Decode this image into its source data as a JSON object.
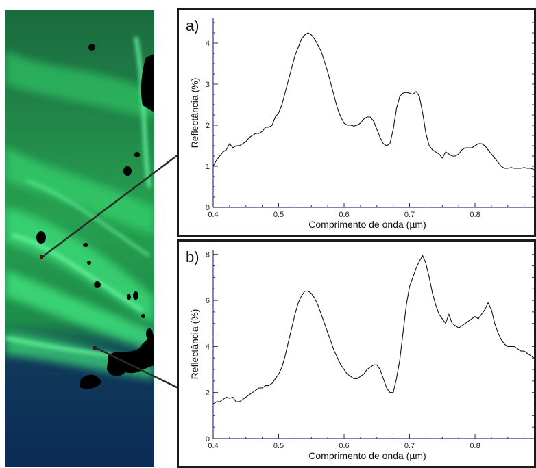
{
  "satellite_image": {
    "description_icon": "satellite-image"
  },
  "chart_data": [
    {
      "type": "line",
      "panel_label": "a)",
      "title": "",
      "xlabel": "Comprimento de onda (µm)",
      "ylabel": "Reflectância (%)",
      "xlim": [
        0.4,
        0.89
      ],
      "ylim": [
        0,
        4.6
      ],
      "xticks": [
        0.4,
        0.5,
        0.6,
        0.7,
        0.8
      ],
      "xtick_labels": [
        "0.4",
        "0.5",
        "0.6",
        "0.7",
        "0.8"
      ],
      "yticks": [
        0,
        1,
        2,
        3,
        4
      ],
      "ytick_labels": [
        "0",
        "1",
        "2",
        "3",
        "4"
      ],
      "grid": false,
      "series": [
        {
          "x": [
            0.4,
            0.405,
            0.41,
            0.415,
            0.42,
            0.425,
            0.43,
            0.435,
            0.44,
            0.445,
            0.45,
            0.455,
            0.46,
            0.465,
            0.47,
            0.475,
            0.48,
            0.485,
            0.49,
            0.495,
            0.5,
            0.505,
            0.51,
            0.515,
            0.52,
            0.525,
            0.53,
            0.535,
            0.54,
            0.545,
            0.55,
            0.555,
            0.56,
            0.565,
            0.57,
            0.575,
            0.58,
            0.585,
            0.59,
            0.595,
            0.6,
            0.605,
            0.61,
            0.615,
            0.62,
            0.625,
            0.63,
            0.635,
            0.64,
            0.645,
            0.65,
            0.655,
            0.66,
            0.665,
            0.67,
            0.675,
            0.68,
            0.685,
            0.69,
            0.695,
            0.7,
            0.705,
            0.71,
            0.715,
            0.72,
            0.725,
            0.73,
            0.735,
            0.74,
            0.745,
            0.75,
            0.755,
            0.76,
            0.765,
            0.77,
            0.775,
            0.78,
            0.785,
            0.79,
            0.795,
            0.8,
            0.805,
            0.81,
            0.815,
            0.82,
            0.825,
            0.83,
            0.835,
            0.84,
            0.845,
            0.85,
            0.855,
            0.86,
            0.865,
            0.87,
            0.875,
            0.88,
            0.885,
            0.89
          ],
          "y": [
            1.0,
            1.15,
            1.25,
            1.35,
            1.4,
            1.55,
            1.45,
            1.5,
            1.5,
            1.55,
            1.6,
            1.7,
            1.75,
            1.8,
            1.8,
            1.85,
            1.95,
            1.95,
            2.0,
            2.2,
            2.3,
            2.5,
            2.8,
            3.1,
            3.4,
            3.7,
            3.9,
            4.1,
            4.2,
            4.25,
            4.2,
            4.1,
            3.95,
            3.8,
            3.55,
            3.3,
            3.0,
            2.7,
            2.4,
            2.2,
            2.05,
            2.0,
            2.0,
            1.98,
            2.0,
            2.05,
            2.15,
            2.2,
            2.2,
            2.1,
            1.9,
            1.7,
            1.55,
            1.5,
            1.55,
            1.9,
            2.4,
            2.7,
            2.78,
            2.8,
            2.78,
            2.75,
            2.82,
            2.7,
            2.3,
            1.8,
            1.5,
            1.4,
            1.35,
            1.3,
            1.2,
            1.35,
            1.3,
            1.25,
            1.25,
            1.3,
            1.4,
            1.45,
            1.45,
            1.45,
            1.5,
            1.55,
            1.55,
            1.5,
            1.4,
            1.3,
            1.2,
            1.1,
            1.0,
            0.95,
            0.95,
            0.97,
            0.95,
            0.95,
            0.95,
            0.97,
            0.95,
            0.95,
            0.92
          ]
        }
      ]
    },
    {
      "type": "line",
      "panel_label": "b)",
      "title": "",
      "xlabel": "Comprimento de onda (µm)",
      "ylabel": "Reflectância (%)",
      "xlim": [
        0.4,
        0.89
      ],
      "ylim": [
        0,
        8.2
      ],
      "xticks": [
        0.4,
        0.5,
        0.6,
        0.7,
        0.8
      ],
      "xtick_labels": [
        "0.4",
        "0.5",
        "0.6",
        "0.7",
        "0.8"
      ],
      "yticks": [
        0,
        2,
        4,
        6,
        8
      ],
      "ytick_labels": [
        "0",
        "2",
        "4",
        "6",
        "8"
      ],
      "grid": false,
      "series": [
        {
          "x": [
            0.4,
            0.405,
            0.41,
            0.415,
            0.42,
            0.425,
            0.43,
            0.435,
            0.44,
            0.445,
            0.45,
            0.455,
            0.46,
            0.465,
            0.47,
            0.475,
            0.48,
            0.485,
            0.49,
            0.495,
            0.5,
            0.505,
            0.51,
            0.515,
            0.52,
            0.525,
            0.53,
            0.535,
            0.54,
            0.545,
            0.55,
            0.555,
            0.56,
            0.565,
            0.57,
            0.575,
            0.58,
            0.585,
            0.59,
            0.595,
            0.6,
            0.605,
            0.61,
            0.615,
            0.62,
            0.625,
            0.63,
            0.635,
            0.64,
            0.645,
            0.65,
            0.655,
            0.66,
            0.665,
            0.67,
            0.675,
            0.68,
            0.685,
            0.69,
            0.695,
            0.7,
            0.705,
            0.71,
            0.715,
            0.72,
            0.725,
            0.73,
            0.735,
            0.74,
            0.745,
            0.75,
            0.755,
            0.76,
            0.765,
            0.77,
            0.775,
            0.78,
            0.785,
            0.79,
            0.795,
            0.8,
            0.805,
            0.81,
            0.815,
            0.82,
            0.825,
            0.83,
            0.835,
            0.84,
            0.845,
            0.85,
            0.855,
            0.86,
            0.865,
            0.87,
            0.875,
            0.88,
            0.885,
            0.89
          ],
          "y": [
            1.5,
            1.6,
            1.6,
            1.7,
            1.8,
            1.75,
            1.8,
            1.6,
            1.6,
            1.7,
            1.8,
            1.9,
            2.0,
            2.1,
            2.2,
            2.2,
            2.3,
            2.3,
            2.4,
            2.6,
            2.8,
            3.1,
            3.6,
            4.2,
            4.8,
            5.4,
            5.9,
            6.2,
            6.4,
            6.4,
            6.3,
            6.1,
            5.8,
            5.4,
            5.0,
            4.6,
            4.2,
            3.8,
            3.5,
            3.2,
            3.0,
            2.8,
            2.7,
            2.6,
            2.6,
            2.7,
            2.8,
            3.0,
            3.1,
            3.2,
            3.2,
            3.0,
            2.6,
            2.2,
            2.0,
            2.0,
            2.6,
            3.4,
            4.6,
            5.8,
            6.6,
            7.0,
            7.4,
            7.7,
            7.95,
            7.6,
            7.0,
            6.3,
            5.8,
            5.4,
            5.2,
            5.0,
            5.4,
            5.0,
            4.9,
            4.8,
            4.9,
            5.0,
            5.1,
            5.2,
            5.3,
            5.2,
            5.4,
            5.6,
            5.9,
            5.6,
            5.0,
            4.6,
            4.3,
            4.1,
            4.0,
            4.0,
            4.0,
            3.9,
            3.8,
            3.8,
            3.7,
            3.6,
            3.5
          ]
        }
      ]
    }
  ]
}
